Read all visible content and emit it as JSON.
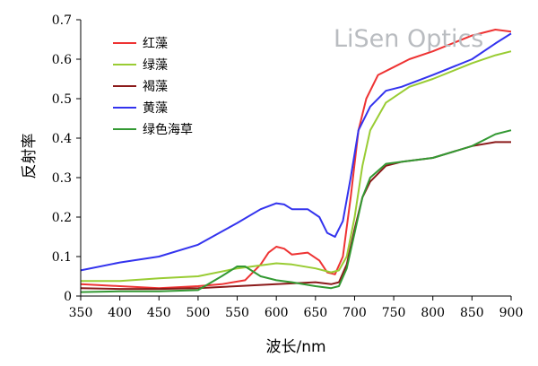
{
  "watermark": "LiSen Optics",
  "chart_data": {
    "type": "line",
    "xlabel": "波长/nm",
    "ylabel": "反射率",
    "xlim": [
      350,
      900
    ],
    "ylim": [
      0,
      0.7
    ],
    "xticks": [
      350,
      400,
      450,
      500,
      550,
      600,
      650,
      700,
      750,
      800,
      850,
      900
    ],
    "yticks": [
      0,
      0.1,
      0.2,
      0.3,
      0.4,
      0.5,
      0.6,
      0.7
    ],
    "ytick_labels": [
      "0",
      "0.1",
      "0.2",
      "0.3",
      "0.4",
      "0.5",
      "0.6",
      "0.7"
    ],
    "grid": false,
    "legend_position": "top-left",
    "series": [
      {
        "name": "红藻",
        "color": "#ee3333",
        "x": [
          350,
          400,
          450,
          500,
          530,
          560,
          580,
          590,
          600,
          610,
          620,
          640,
          655,
          665,
          675,
          685,
          695,
          705,
          715,
          730,
          750,
          770,
          800,
          850,
          880,
          900
        ],
        "y": [
          0.03,
          0.025,
          0.02,
          0.025,
          0.03,
          0.04,
          0.08,
          0.11,
          0.125,
          0.12,
          0.105,
          0.11,
          0.09,
          0.06,
          0.055,
          0.1,
          0.25,
          0.42,
          0.5,
          0.56,
          0.58,
          0.6,
          0.62,
          0.66,
          0.675,
          0.67
        ]
      },
      {
        "name": "绿藻",
        "color": "#99cc33",
        "x": [
          350,
          400,
          450,
          500,
          550,
          600,
          620,
          650,
          670,
          680,
          690,
          700,
          710,
          720,
          740,
          770,
          800,
          850,
          880,
          900
        ],
        "y": [
          0.038,
          0.038,
          0.045,
          0.05,
          0.07,
          0.083,
          0.08,
          0.07,
          0.06,
          0.065,
          0.1,
          0.2,
          0.33,
          0.42,
          0.49,
          0.53,
          0.55,
          0.59,
          0.61,
          0.62
        ]
      },
      {
        "name": "褐藻",
        "color": "#8b1a1a",
        "x": [
          350,
          400,
          450,
          500,
          550,
          600,
          650,
          670,
          680,
          690,
          700,
          710,
          720,
          740,
          760,
          800,
          850,
          880,
          900
        ],
        "y": [
          0.02,
          0.018,
          0.018,
          0.02,
          0.025,
          0.03,
          0.035,
          0.03,
          0.035,
          0.08,
          0.17,
          0.25,
          0.29,
          0.33,
          0.34,
          0.35,
          0.38,
          0.39,
          0.39
        ]
      },
      {
        "name": "黄藻",
        "color": "#3333ee",
        "x": [
          350,
          400,
          450,
          500,
          550,
          580,
          600,
          610,
          620,
          640,
          655,
          665,
          675,
          685,
          695,
          705,
          720,
          740,
          760,
          800,
          850,
          880,
          900
        ],
        "y": [
          0.065,
          0.085,
          0.1,
          0.13,
          0.185,
          0.22,
          0.235,
          0.232,
          0.22,
          0.22,
          0.2,
          0.16,
          0.15,
          0.19,
          0.3,
          0.42,
          0.48,
          0.52,
          0.53,
          0.56,
          0.6,
          0.64,
          0.665
        ]
      },
      {
        "name": "绿色海草",
        "color": "#339933",
        "x": [
          350,
          400,
          450,
          500,
          530,
          550,
          560,
          580,
          600,
          620,
          650,
          670,
          680,
          690,
          700,
          710,
          720,
          740,
          760,
          800,
          850,
          880,
          900
        ],
        "y": [
          0.01,
          0.012,
          0.012,
          0.015,
          0.05,
          0.075,
          0.075,
          0.05,
          0.04,
          0.035,
          0.025,
          0.02,
          0.025,
          0.07,
          0.16,
          0.25,
          0.3,
          0.335,
          0.34,
          0.35,
          0.38,
          0.41,
          0.42
        ]
      }
    ]
  }
}
